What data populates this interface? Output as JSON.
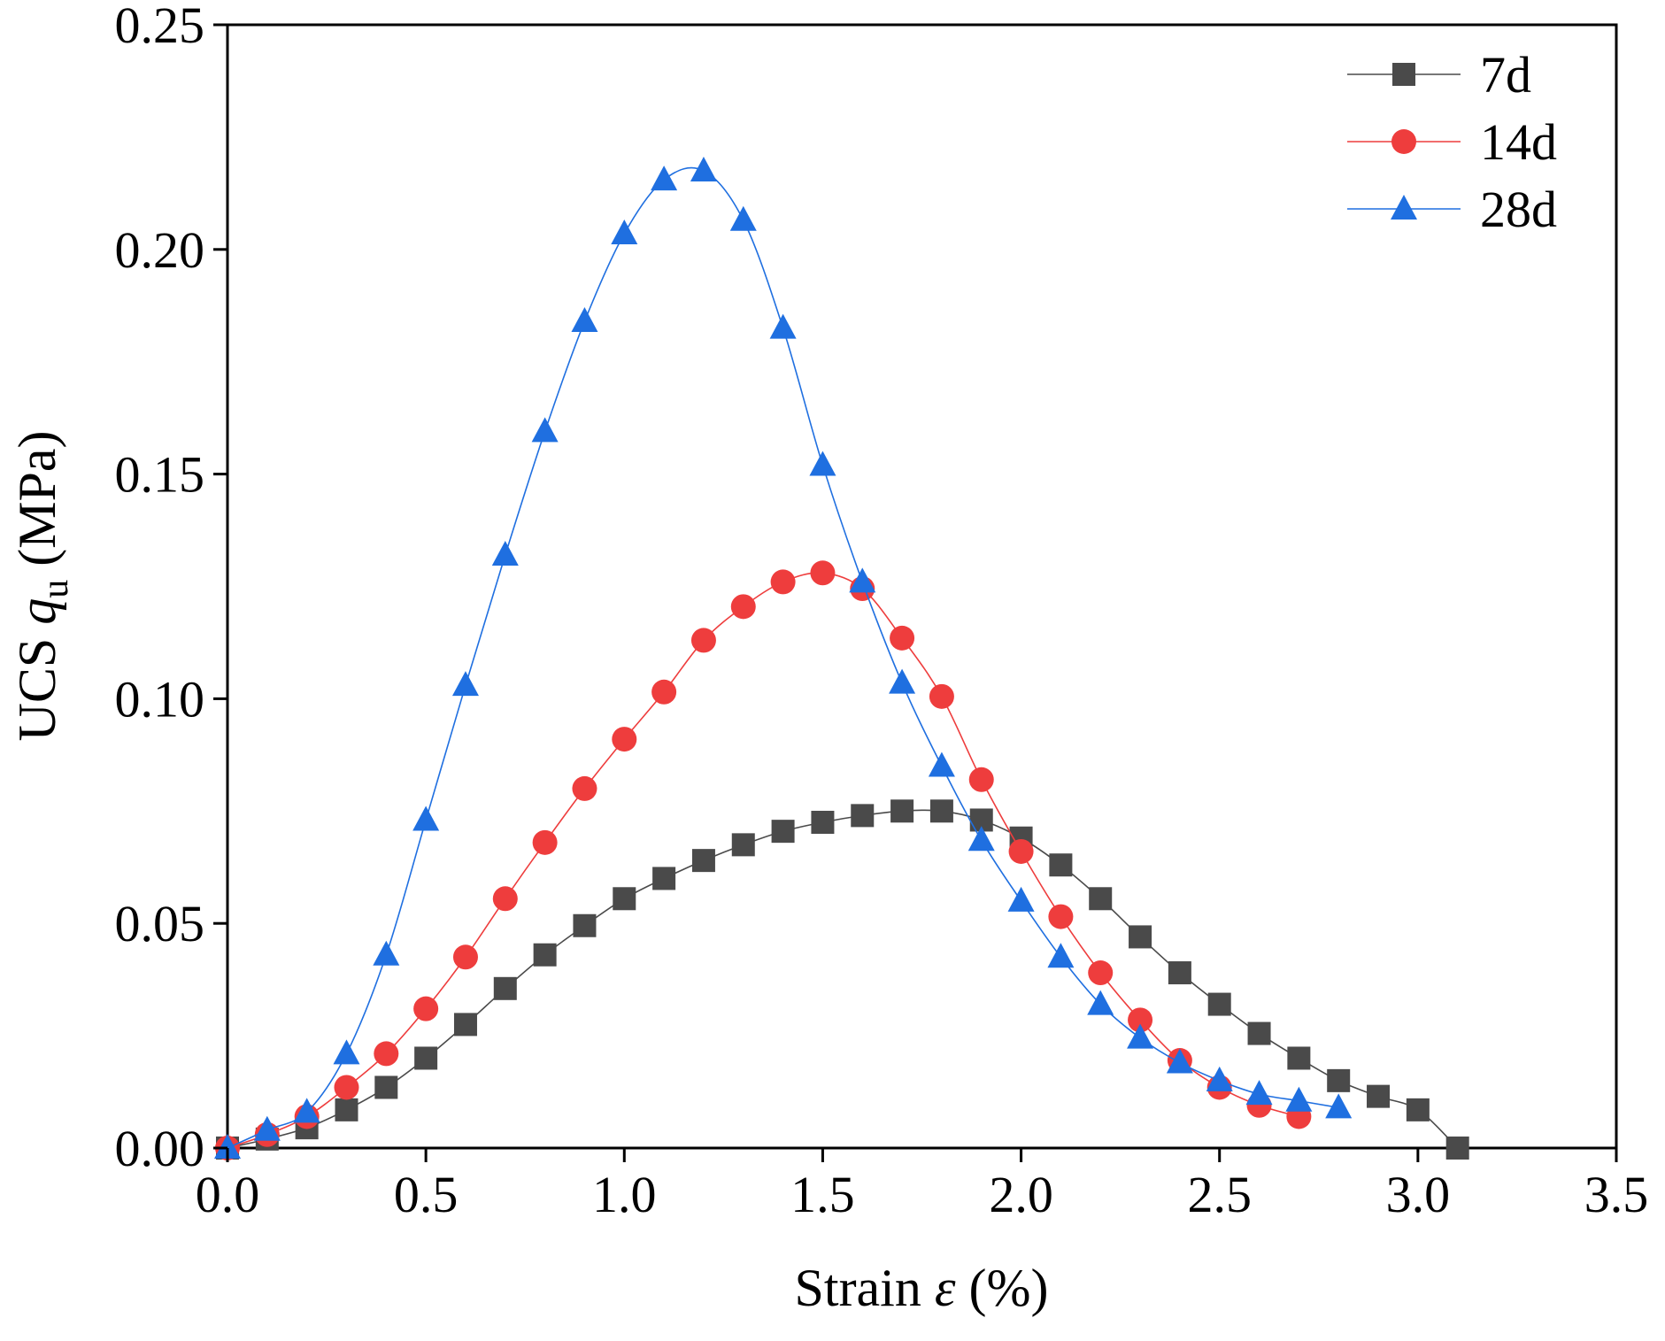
{
  "chart_data": {
    "type": "line",
    "title": "",
    "xlabel": {
      "prefix": "Strain ",
      "symbol": "ε",
      "suffix": " (%)"
    },
    "ylabel": {
      "prefix": "UCS  ",
      "symbol": "q",
      "subscript": "u",
      "suffix": " (MPa)"
    },
    "xlim": [
      0,
      3.5
    ],
    "ylim": [
      0,
      0.25
    ],
    "x_ticks": [
      "0.0",
      "0.5",
      "1.0",
      "1.5",
      "2.0",
      "2.5",
      "3.0",
      "3.5"
    ],
    "y_ticks": [
      "0.00",
      "0.05",
      "0.10",
      "0.15",
      "0.20",
      "0.25"
    ],
    "grid": false,
    "legend_position": "top-right",
    "series": [
      {
        "name": "7d",
        "marker": "square",
        "color": "#4a4a4a",
        "x": [
          0,
          0.1,
          0.2,
          0.3,
          0.4,
          0.5,
          0.6,
          0.7,
          0.8,
          0.9,
          1.0,
          1.1,
          1.2,
          1.3,
          1.4,
          1.5,
          1.6,
          1.7,
          1.8,
          1.9,
          2.0,
          2.1,
          2.2,
          2.3,
          2.4,
          2.5,
          2.6,
          2.7,
          2.8,
          2.9,
          3.0,
          3.1
        ],
        "y": [
          0.0,
          0.002,
          0.0045,
          0.0085,
          0.0135,
          0.02,
          0.0275,
          0.0355,
          0.043,
          0.0495,
          0.0555,
          0.06,
          0.064,
          0.0675,
          0.0705,
          0.0725,
          0.074,
          0.075,
          0.075,
          0.073,
          0.069,
          0.063,
          0.0555,
          0.047,
          0.039,
          0.032,
          0.0255,
          0.02,
          0.015,
          0.0115,
          0.0085,
          0.0
        ]
      },
      {
        "name": "14d",
        "marker": "circle",
        "color": "#ee3d3d",
        "x": [
          0,
          0.1,
          0.2,
          0.3,
          0.4,
          0.5,
          0.6,
          0.7,
          0.8,
          0.9,
          1.0,
          1.1,
          1.2,
          1.3,
          1.4,
          1.5,
          1.6,
          1.7,
          1.8,
          1.9,
          2.0,
          2.1,
          2.2,
          2.3,
          2.4,
          2.5,
          2.6,
          2.7
        ],
        "y": [
          0.0,
          0.003,
          0.007,
          0.0135,
          0.021,
          0.031,
          0.0425,
          0.0555,
          0.068,
          0.08,
          0.091,
          0.1015,
          0.113,
          0.1205,
          0.126,
          0.128,
          0.1245,
          0.1135,
          0.1005,
          0.082,
          0.066,
          0.0515,
          0.039,
          0.0285,
          0.0195,
          0.0135,
          0.0095,
          0.007
        ]
      },
      {
        "name": "28d",
        "marker": "triangle",
        "color": "#1f6fe0",
        "x": [
          0,
          0.1,
          0.2,
          0.3,
          0.4,
          0.5,
          0.6,
          0.7,
          0.8,
          0.9,
          1.0,
          1.1,
          1.2,
          1.3,
          1.4,
          1.5,
          1.6,
          1.7,
          1.8,
          1.9,
          2.0,
          2.1,
          2.2,
          2.3,
          2.4,
          2.5,
          2.6,
          2.7,
          2.8
        ],
        "y": [
          0.0,
          0.004,
          0.008,
          0.021,
          0.043,
          0.073,
          0.103,
          0.132,
          0.1595,
          0.184,
          0.2035,
          0.2155,
          0.2175,
          0.2065,
          0.1825,
          0.152,
          0.126,
          0.1035,
          0.085,
          0.0685,
          0.055,
          0.0425,
          0.032,
          0.0245,
          0.019,
          0.015,
          0.012,
          0.0105,
          0.009
        ]
      }
    ]
  }
}
